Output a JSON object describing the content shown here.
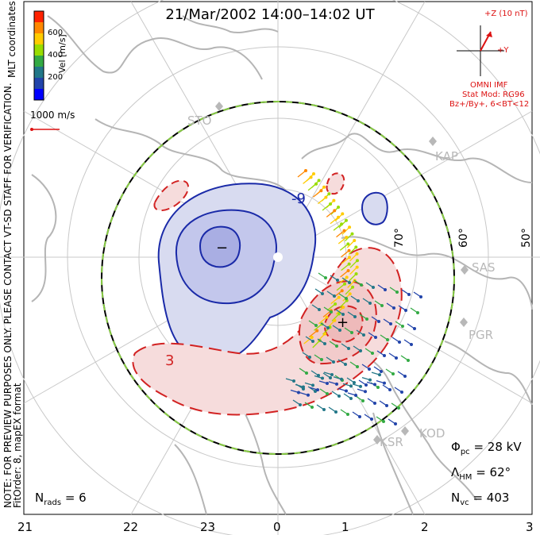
{
  "title": "21/Mar/2002  14:00–14:02  UT",
  "note": {
    "line1": "NOTE: FOR PREVIEW PURPOSES ONLY. PLEASE CONTACT VT-SD STAFF FOR VERIFICATION.",
    "line2": "FitOrder: 8,  mapEX format"
  },
  "coord_system": "MLT coordinates",
  "colorbar": {
    "unit": "Vel [m/s]",
    "ticks": [
      "600",
      "400",
      "200"
    ],
    "colors": [
      "#ff2200",
      "#ff8800",
      "#ffcc00",
      "#99dd00",
      "#33aa44",
      "#227788",
      "#2244aa",
      "#0000ff"
    ]
  },
  "reference_vector": "1000 m/s",
  "imf": {
    "z_label": "+Z (10 nT)",
    "y_label": "+Y",
    "source": "OMNI IMF",
    "model": "Stat Mod: RG96",
    "condition": "Bz+/By+, 6<BT<12"
  },
  "stats": {
    "phi_symbol": "Φ",
    "phi_sub": "pc",
    "phi_value": "= 28 kV",
    "lambda_symbol": "Λ",
    "lambda_sub": "HM",
    "lambda_value": "= 62°",
    "nvc_symbol": "N",
    "nvc_sub": "vc",
    "nvc_value": "= 403",
    "nrads_symbol": "N",
    "nrads_sub": "rads",
    "nrads_value": "= 6"
  },
  "mlt_axis": [
    "21",
    "22",
    "23",
    "0",
    "1",
    "2",
    "3"
  ],
  "latitude_labels": [
    "70°",
    "60°",
    "50°"
  ],
  "stations": [
    "STO",
    "KAP",
    "SAS",
    "PGR",
    "KOD",
    "KSR"
  ],
  "contour_labels": [
    "-9",
    "−",
    "+",
    "3"
  ],
  "colors": {
    "negative_contour": "#1a2aa8",
    "negative_fill": "#d8dbf0",
    "positive_contour": "#d22222",
    "positive_fill": "#f6dcdc",
    "boundary_dash": "#88cc44",
    "grid": "#c8c8c8",
    "coast": "#b5b5b5",
    "annotation_red": "#dd1111"
  }
}
